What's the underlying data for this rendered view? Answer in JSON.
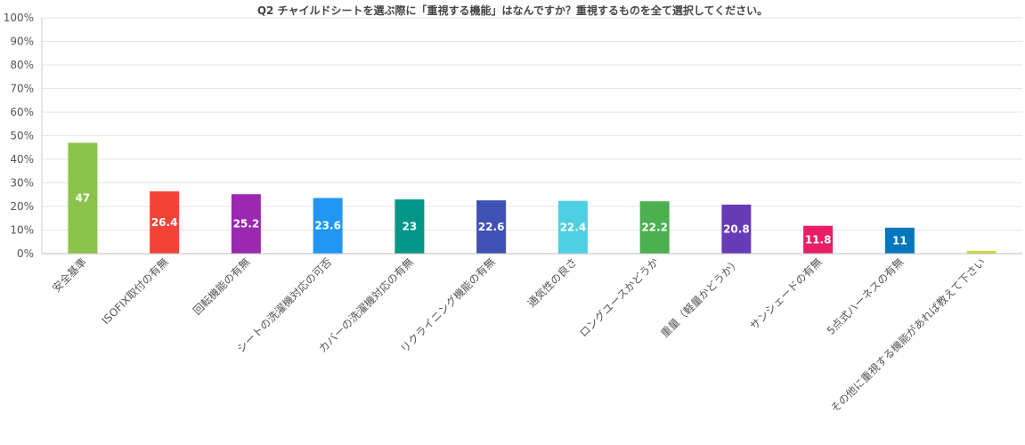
{
  "chart_data": {
    "type": "bar",
    "title": "Q2 チャイルドシートを選ぶ際に「重視する機能」はなんですか？重視するものを全て選択してください。",
    "xlabel": "",
    "ylabel": "",
    "ylim": [
      0,
      100
    ],
    "yticks": [
      "0%",
      "10%",
      "20%",
      "30%",
      "40%",
      "50%",
      "60%",
      "70%",
      "80%",
      "90%",
      "100%"
    ],
    "grid": true,
    "legend": "none",
    "categories": [
      "安全基準",
      "ISOFIX取付の有無",
      "回転機能の有無",
      "シートの洗濯機対応の可否",
      "カバーの洗濯機対応の有無",
      "リクライニング機能の有無",
      "通気性の良さ",
      "ロングユースかどうか",
      "重量（軽量かどうか）",
      "サンシェードの有無",
      "5点式ハーネスの有無",
      "その他に重視する機能があれば教えて下さい"
    ],
    "values": [
      47,
      26.4,
      25.2,
      23.6,
      23,
      22.6,
      22.4,
      22.2,
      20.8,
      11.8,
      11,
      1.2
    ],
    "data_labels": [
      "47",
      "26.4",
      "25.2",
      "23.6",
      "23",
      "22.6",
      "22.4",
      "22.2",
      "20.8",
      "11.8",
      "11",
      ""
    ],
    "colors": [
      "#8bc34a",
      "#f44336",
      "#9c27b0",
      "#2196f3",
      "#009688",
      "#3f51b5",
      "#4dd0e1",
      "#4caf50",
      "#673ab7",
      "#e91e63",
      "#0277bd",
      "#cddc39"
    ]
  }
}
